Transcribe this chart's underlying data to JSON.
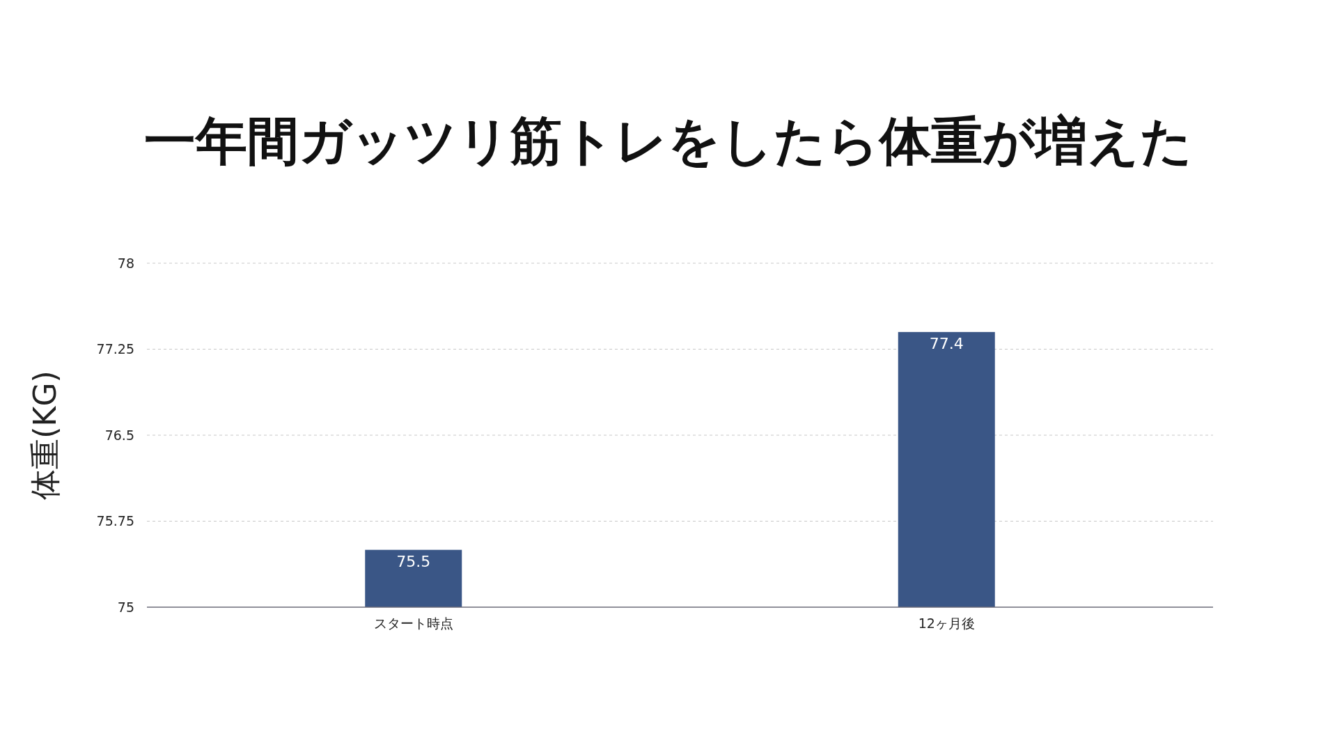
{
  "chart_data": {
    "type": "bar",
    "title": "一年間ガッツリ筋トレをしたら体重が増えた",
    "ylabel": "体重(KG)",
    "categories": [
      "スタート時点",
      "12ヶ月後"
    ],
    "series": [
      {
        "color": "#3a5686",
        "values": [
          75.5,
          77.4
        ]
      }
    ],
    "ylim": [
      75,
      78
    ],
    "yticks": [
      75,
      75.75,
      76.5,
      77.25,
      78
    ],
    "grid": "y",
    "data_labels": true
  }
}
